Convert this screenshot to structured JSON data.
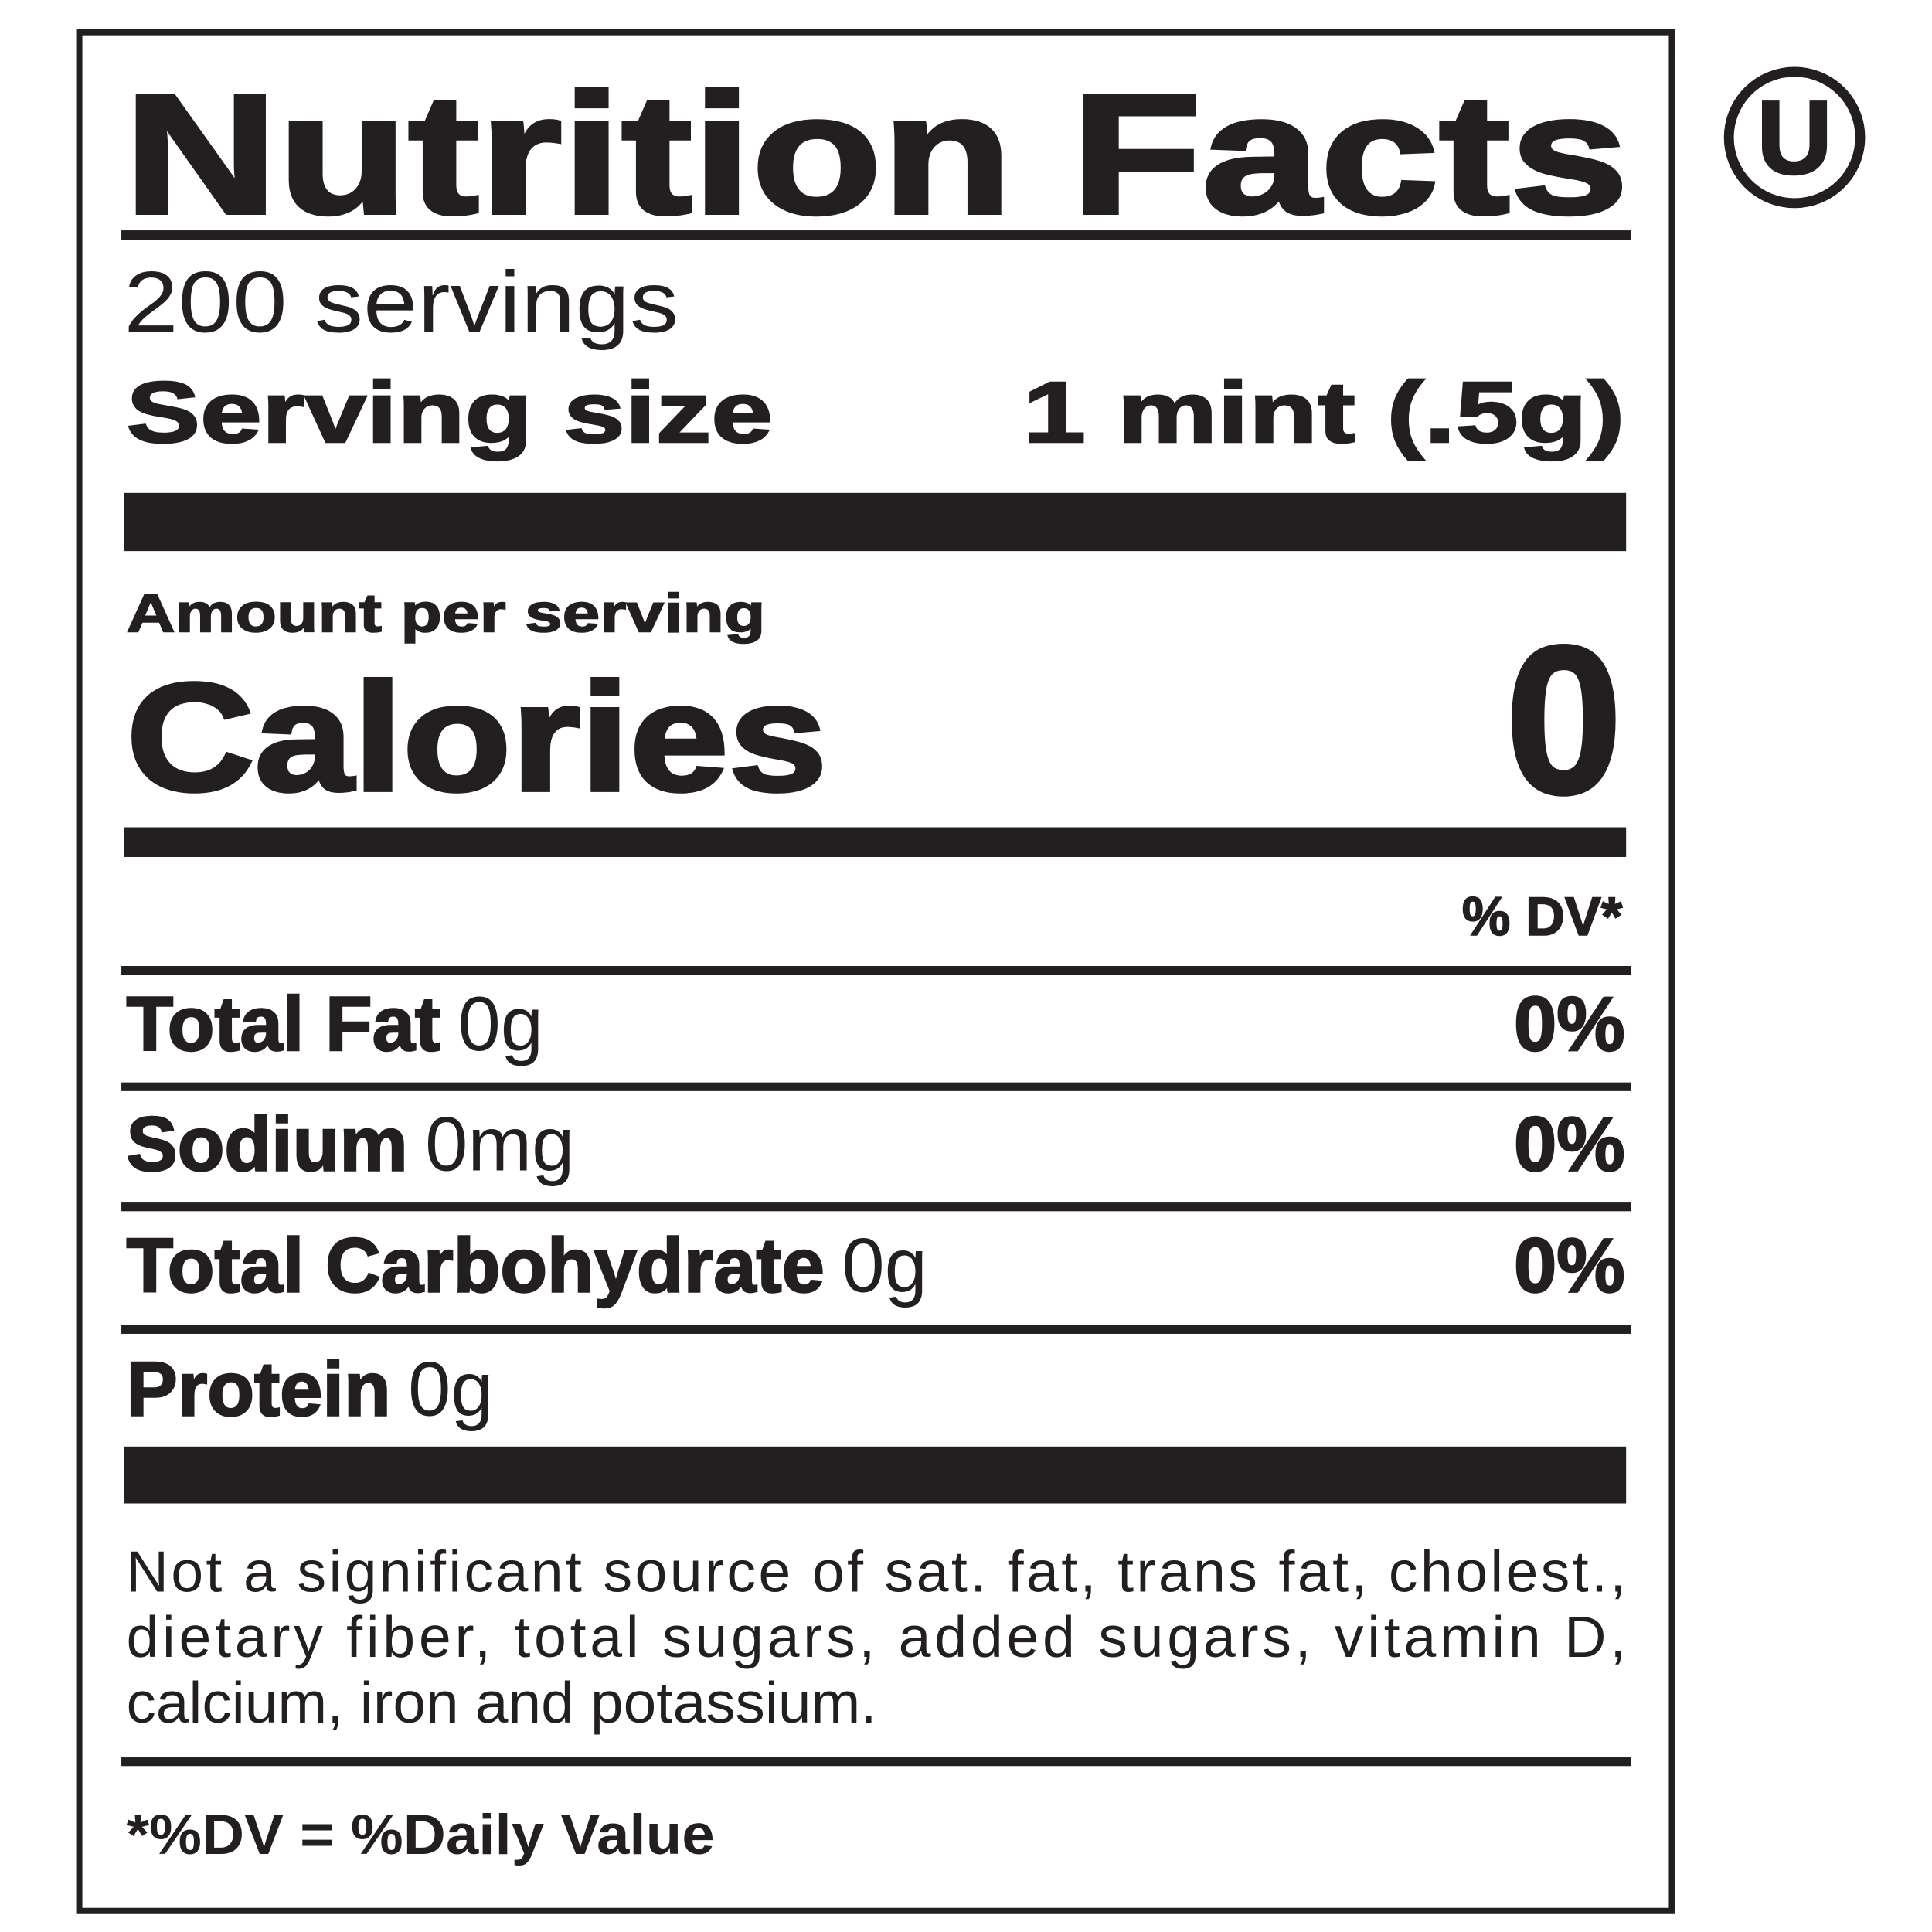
{
  "label": {
    "title": "Nutrition Facts",
    "servings": "200 servings",
    "serving_size_label": "Serving size",
    "serving_size_value": "1 mint (.5g)",
    "amount_per_serving": "Amount per serving",
    "calories_label": "Calories",
    "calories_value": "0",
    "dv_header": "% DV*",
    "nutrients": [
      {
        "name": "Total Fat",
        "amount": "0g",
        "dv": "0%"
      },
      {
        "name": "Sodium",
        "amount": "0mg",
        "dv": "0%"
      },
      {
        "name": "Total Carbohydrate",
        "amount": "0g",
        "dv": "0%"
      },
      {
        "name": "Protein",
        "amount": "0g",
        "dv": ""
      }
    ],
    "footnote_lines": [
      "Not a significant source of sat. fat, trans fat, cholest.,",
      "dietary fiber, total sugars, added sugars, vitamin D,",
      "calcium, iron and potassium."
    ],
    "dv_definition": "*%DV = %Daily Value"
  },
  "kosher_symbol": {
    "letter": "U",
    "icon": "orthodox-union-kosher-icon"
  },
  "colors": {
    "ink": "#231f20",
    "background": "#ffffff"
  }
}
